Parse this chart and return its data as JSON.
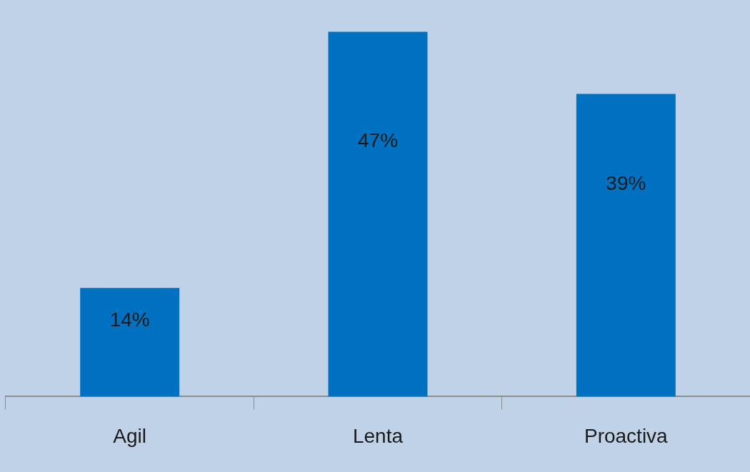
{
  "chart_data": {
    "type": "bar",
    "categories": [
      "Agil",
      "Lenta",
      "Proactiva"
    ],
    "values": [
      14,
      47,
      39
    ],
    "value_labels": [
      "14%",
      "47%",
      "39%"
    ],
    "color": "#0070c0",
    "legend": false
  }
}
